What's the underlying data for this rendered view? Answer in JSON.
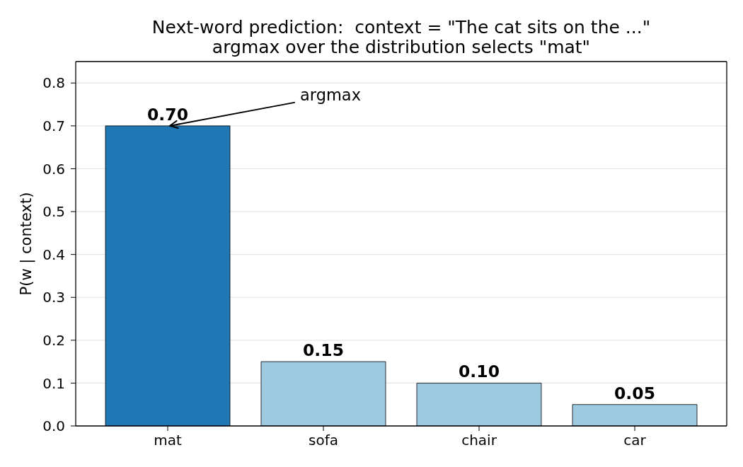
{
  "chart_data": {
    "type": "bar",
    "title": "Next-word prediction:  context = \"The cat sits on the ...\"",
    "subtitle": "argmax over the distribution selects \"mat\"",
    "ylabel": "P(w | context)",
    "categories": [
      "mat",
      "sofa",
      "chair",
      "car"
    ],
    "values": [
      0.7,
      0.15,
      0.1,
      0.05
    ],
    "colors": [
      "#1f77b4",
      "#9ecae1",
      "#9ecae1",
      "#9ecae1"
    ],
    "value_labels": [
      "0.70",
      "0.15",
      "0.10",
      "0.05"
    ],
    "ylim": [
      0,
      0.85
    ],
    "yticks": [
      {
        "value": 0,
        "label": "0.0"
      },
      0.1,
      0.2,
      0.3,
      0.4,
      0.5,
      0.6,
      0.7,
      0.8
    ],
    "grid": "y",
    "annotations": [
      {
        "text": "argmax",
        "x": "mat",
        "y": 0.7
      }
    ]
  }
}
